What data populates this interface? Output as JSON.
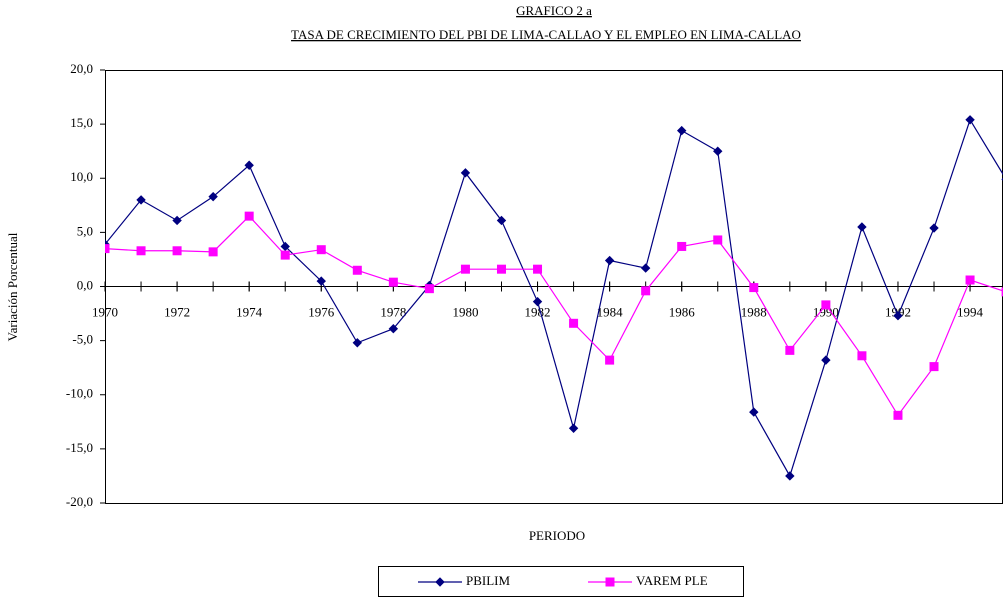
{
  "chart_data": {
    "type": "line",
    "title": "GRAFICO  2 a",
    "subtitle": "TASA DE CRECIMIENTO DEL PBI DE LIMA-CALLAO Y EL EMPLEO EN LIMA-CALLAO",
    "x_label": "PERIODO",
    "y_label": "Variación Porcentual",
    "x": [
      1970,
      1971,
      1972,
      1973,
      1974,
      1975,
      1976,
      1977,
      1978,
      1979,
      1980,
      1981,
      1982,
      1983,
      1984,
      1985,
      1986,
      1987,
      1988,
      1989,
      1990,
      1991,
      1992,
      1993,
      1994,
      1995
    ],
    "xlim": [
      1970,
      1994.9
    ],
    "xticks": [
      1970,
      1972,
      1974,
      1976,
      1978,
      1980,
      1982,
      1984,
      1986,
      1988,
      1990,
      1992,
      1994
    ],
    "ylim": [
      -20,
      20
    ],
    "yticks": [
      {
        "value": 20,
        "label": "20,0"
      },
      {
        "value": 15,
        "label": "15,0"
      },
      {
        "value": 10,
        "label": "10,0"
      },
      {
        "value": 5,
        "label": "5,0"
      },
      {
        "value": 0,
        "label": "0,0"
      },
      {
        "value": -5,
        "label": "-5,0"
      },
      {
        "value": -10,
        "label": "-10,0"
      },
      {
        "value": -15,
        "label": "-15,0"
      },
      {
        "value": -20,
        "label": "-20,0"
      }
    ],
    "grid": false,
    "series": [
      {
        "name": "PBILIM",
        "color": "#000080",
        "marker": "diamond",
        "values": [
          3.9,
          8.0,
          6.1,
          8.3,
          11.2,
          3.7,
          0.5,
          -5.2,
          -3.9,
          0.1,
          10.5,
          6.1,
          -1.4,
          -13.1,
          2.4,
          1.7,
          14.4,
          12.5,
          -11.6,
          -17.5,
          -6.8,
          5.5,
          -2.7,
          5.4,
          15.4,
          9.9
        ]
      },
      {
        "name": "VAREM PLE",
        "color": "#ff00ff",
        "marker": "square",
        "values": [
          3.5,
          3.3,
          3.3,
          3.2,
          6.5,
          2.9,
          3.4,
          1.5,
          0.4,
          -0.2,
          1.6,
          1.6,
          1.6,
          -3.4,
          -6.8,
          -0.4,
          3.7,
          4.3,
          -0.1,
          -5.9,
          -1.7,
          -6.4,
          -11.9,
          -7.4,
          0.6,
          -0.5
        ]
      }
    ]
  }
}
